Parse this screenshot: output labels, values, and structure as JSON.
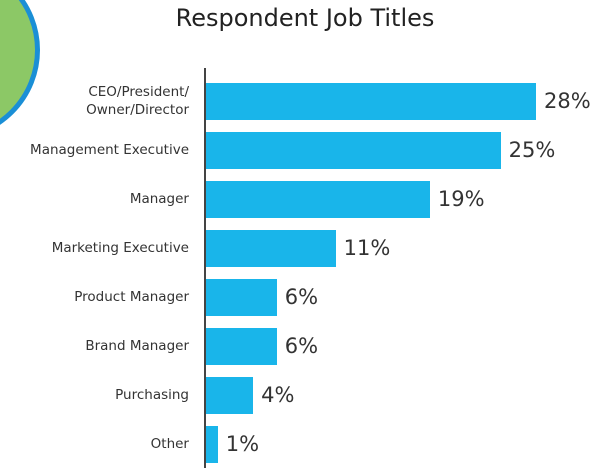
{
  "chart_data": {
    "type": "bar",
    "orientation": "horizontal",
    "title": "Respondent Job Titles",
    "categories": [
      "CEO/President/\nOwner/Director",
      "Management Executive",
      "Manager",
      "Marketing Executive",
      "Product Manager",
      "Brand Manager",
      "Purchasing",
      "Other"
    ],
    "values": [
      28,
      25,
      19,
      11,
      6,
      6,
      4,
      1
    ],
    "value_labels": [
      "28%",
      "25%",
      "19%",
      "11%",
      "6%",
      "6%",
      "4%",
      "1%"
    ],
    "color": "#19b5ea"
  }
}
